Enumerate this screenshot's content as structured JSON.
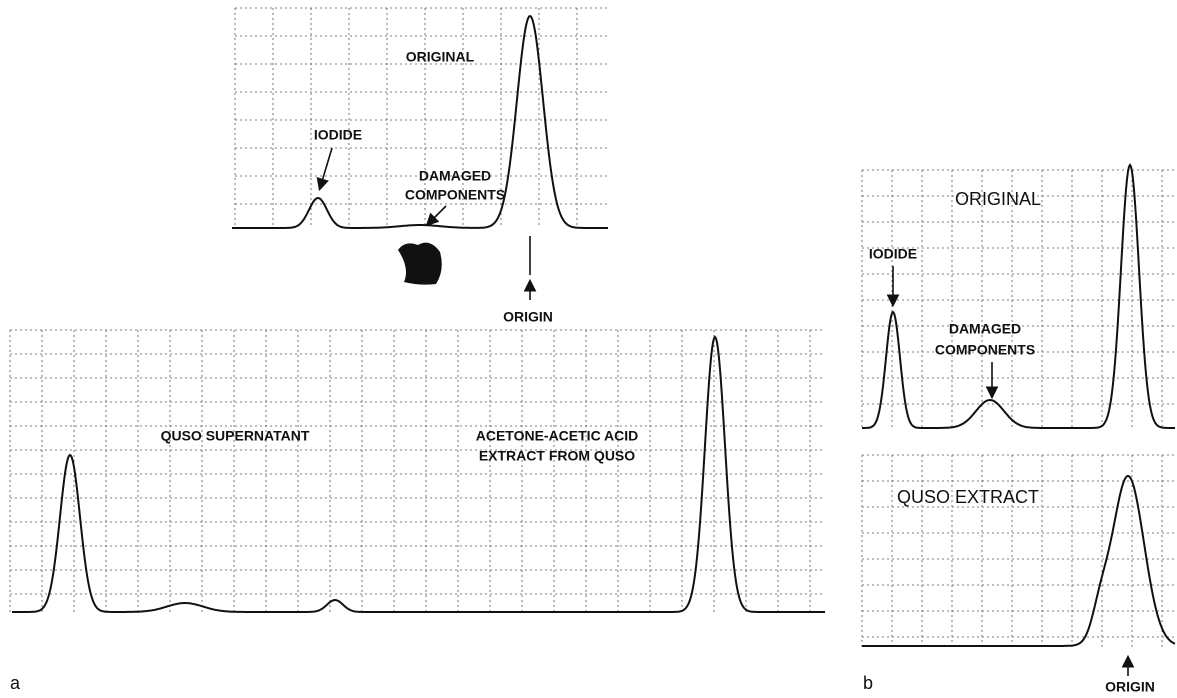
{
  "panel_a": {
    "label": "a",
    "original": {
      "title": "ORIGINAL",
      "iodide": "IODIDE",
      "damaged": [
        "DAMAGED",
        "COMPONENTS"
      ],
      "origin": "ORIGIN"
    },
    "supernatant": "QUSO SUPERNATANT",
    "extract": [
      "ACETONE-ACETIC ACID",
      "EXTRACT FROM QUSO"
    ]
  },
  "panel_b": {
    "label": "b",
    "original": {
      "title": "ORIGINAL",
      "iodide": "IODIDE",
      "damaged": [
        "DAMAGED",
        "COMPONENTS"
      ]
    },
    "extract": {
      "title": "QUSO EXTRACT",
      "origin": "ORIGIN"
    }
  }
}
